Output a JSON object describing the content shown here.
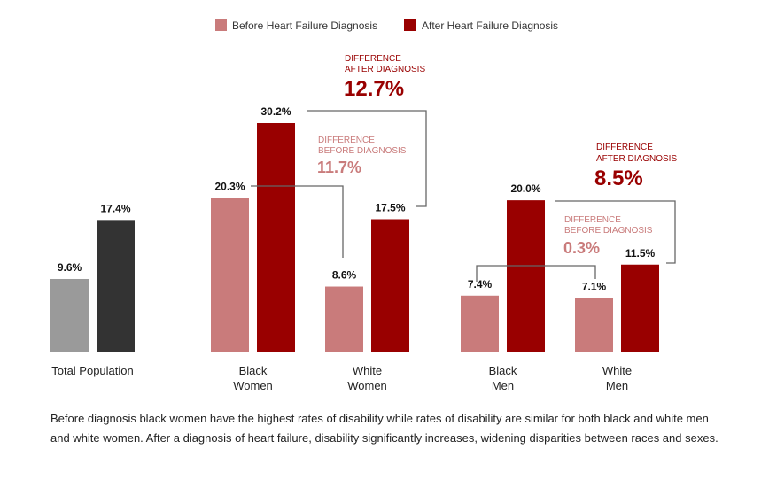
{
  "chart_data": {
    "type": "bar",
    "categories": [
      "Total Population",
      "Black Women",
      "White Women",
      "Black Men",
      "White Men"
    ],
    "series": [
      {
        "name": "Before Heart Failure Diagnosis",
        "values": [
          9.6,
          20.3,
          8.6,
          7.4,
          7.1
        ],
        "labels": [
          "9.6%",
          "20.3%",
          "8.6%",
          "7.4%",
          "7.1%"
        ]
      },
      {
        "name": "After Heart Failure Diagnosis",
        "values": [
          17.4,
          30.2,
          17.5,
          20.0,
          11.5
        ],
        "labels": [
          "17.4%",
          "30.2%",
          "17.5%",
          "20.0%",
          "11.5%"
        ]
      }
    ],
    "ylim": [
      0,
      30.2
    ],
    "grid": false,
    "legend": "top",
    "colors": {
      "before": "#c97b7b",
      "after": "#990000",
      "total_before": "#9a9a9a",
      "total_after": "#333333",
      "connector": "#666666"
    },
    "annotations": {
      "women_before": {
        "label1": "DIFFERENCE",
        "label2": "BEFORE DIAGNOSIS",
        "value": "11.7%"
      },
      "women_after": {
        "label1": "DIFFERENCE",
        "label2": "AFTER DIAGNOSIS",
        "value": "12.7%"
      },
      "men_before": {
        "label1": "DIFFERENCE",
        "label2": "BEFORE DIAGNOSIS",
        "value": "0.3%"
      },
      "men_after": {
        "label1": "DIFFERENCE",
        "label2": "AFTER DIAGNOSIS",
        "value": "8.5%"
      }
    },
    "category_lines": [
      [
        "Total Population"
      ],
      [
        "Black",
        "Women"
      ],
      [
        "White",
        "Women"
      ],
      [
        "Black",
        "Men"
      ],
      [
        "White",
        "Men"
      ]
    ]
  },
  "caption": "Before diagnosis black women have the highest rates of disability while rates of disability are similar for both black and white men and white women. After a diagnosis of heart failure, disability significantly increases, widening disparities between races and sexes."
}
